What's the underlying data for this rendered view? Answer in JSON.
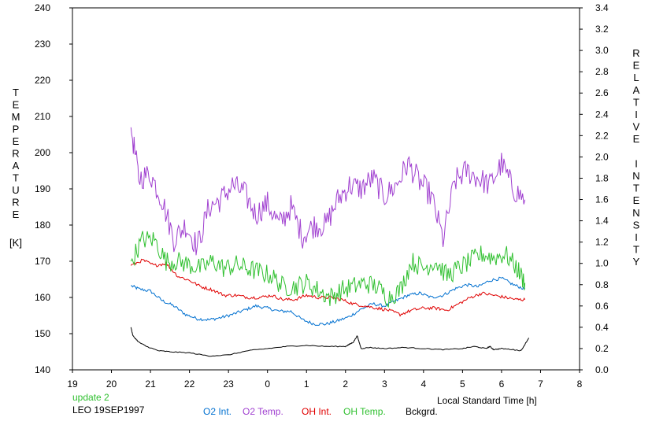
{
  "chart_data": {
    "type": "line",
    "status_text": "update 2",
    "station_label": "LEO 19SEP1997",
    "xlabel": "Local Standard Time [h]",
    "ylabel_left_letters": [
      "T",
      "E",
      "M",
      "P",
      "E",
      "R",
      "A",
      "T",
      "U",
      "R",
      "E"
    ],
    "ylabel_left_unit": "[K]",
    "ylabel_right_letters": [
      "R",
      "E",
      "L",
      "A",
      "T",
      "I",
      "V",
      "E",
      "",
      "I",
      "N",
      "T",
      "E",
      "N",
      "S",
      "I",
      "T",
      "Y"
    ],
    "x_ticks": [
      {
        "v": 19,
        "label": "19"
      },
      {
        "v": 20,
        "label": "20"
      },
      {
        "v": 21,
        "label": "21"
      },
      {
        "v": 22,
        "label": "22"
      },
      {
        "v": 23,
        "label": "23"
      },
      {
        "v": 24,
        "label": "0"
      },
      {
        "v": 25,
        "label": "1"
      },
      {
        "v": 26,
        "label": "2"
      },
      {
        "v": 27,
        "label": "3"
      },
      {
        "v": 28,
        "label": "4"
      },
      {
        "v": 29,
        "label": "5"
      },
      {
        "v": 30,
        "label": "6"
      },
      {
        "v": 31,
        "label": "7"
      },
      {
        "v": 32,
        "label": "8"
      }
    ],
    "xlim": [
      19,
      32
    ],
    "ylim_left": [
      140,
      240
    ],
    "yticks_left": [
      "140",
      "150",
      "160",
      "170",
      "180",
      "190",
      "200",
      "210",
      "220",
      "230",
      "240"
    ],
    "ylim_right": [
      0,
      3.4
    ],
    "yticks_right": [
      "0.0",
      "0.2",
      "0.4",
      "0.6",
      "0.8",
      "1.0",
      "1.2",
      "1.4",
      "1.6",
      "1.8",
      "2.0",
      "2.2",
      "2.4",
      "2.6",
      "2.8",
      "3.0",
      "3.2",
      "3.4"
    ],
    "grid": false,
    "legend_placement": "bottom",
    "series": [
      {
        "name": "O2 Int.",
        "axis": "right",
        "color": "#0070d0",
        "noise": 0.015,
        "x": [
          20.5,
          20.7,
          21.0,
          21.3,
          21.6,
          21.9,
          22.2,
          22.5,
          22.8,
          23.1,
          23.4,
          23.7,
          24.0,
          24.3,
          24.6,
          24.9,
          25.2,
          25.5,
          25.8,
          26.1,
          26.4,
          26.7,
          27.0,
          27.3,
          27.6,
          27.9,
          28.2,
          28.5,
          28.8,
          29.1,
          29.4,
          29.7,
          30.0,
          30.3,
          30.6
        ],
        "y": [
          0.79,
          0.76,
          0.74,
          0.65,
          0.6,
          0.52,
          0.48,
          0.47,
          0.49,
          0.52,
          0.56,
          0.6,
          0.58,
          0.55,
          0.55,
          0.47,
          0.43,
          0.43,
          0.46,
          0.5,
          0.57,
          0.62,
          0.6,
          0.65,
          0.7,
          0.72,
          0.68,
          0.7,
          0.76,
          0.8,
          0.78,
          0.84,
          0.86,
          0.8,
          0.76
        ]
      },
      {
        "name": "O2 Temp.",
        "axis": "left",
        "color": "#a040d0",
        "noise": 3.5,
        "x": [
          20.5,
          20.7,
          21.0,
          21.3,
          21.6,
          21.9,
          22.2,
          22.5,
          22.8,
          23.1,
          23.4,
          23.7,
          24.0,
          24.3,
          24.6,
          24.9,
          25.2,
          25.5,
          25.8,
          26.1,
          26.4,
          26.7,
          27.0,
          27.3,
          27.6,
          27.9,
          28.2,
          28.5,
          28.8,
          29.1,
          29.4,
          29.7,
          30.0,
          30.3,
          30.6
        ],
        "y": [
          207,
          193,
          194,
          187,
          176,
          180,
          174,
          185,
          187,
          191,
          189,
          183,
          186,
          180,
          185,
          177,
          180,
          180,
          187,
          191,
          190,
          193,
          188,
          191,
          197,
          192,
          188,
          176,
          192,
          195,
          193,
          191,
          197,
          190,
          187
        ]
      },
      {
        "name": "OH Int.",
        "axis": "right",
        "color": "#e00000",
        "noise": 0.015,
        "x": [
          20.5,
          20.8,
          21.1,
          21.4,
          21.7,
          22.0,
          22.3,
          22.6,
          22.9,
          23.2,
          23.5,
          23.8,
          24.1,
          24.4,
          24.7,
          25.0,
          25.3,
          25.6,
          25.9,
          26.2,
          26.5,
          26.8,
          27.1,
          27.4,
          27.7,
          28.0,
          28.3,
          28.6,
          28.9,
          29.2,
          29.5,
          29.8,
          30.1,
          30.4,
          30.6
        ],
        "y": [
          0.98,
          1.03,
          0.98,
          1.0,
          0.88,
          0.84,
          0.78,
          0.75,
          0.7,
          0.7,
          0.68,
          0.68,
          0.7,
          0.66,
          0.66,
          0.7,
          0.68,
          0.68,
          0.66,
          0.62,
          0.6,
          0.58,
          0.56,
          0.52,
          0.56,
          0.58,
          0.58,
          0.56,
          0.62,
          0.68,
          0.72,
          0.7,
          0.68,
          0.66,
          0.66
        ]
      },
      {
        "name": "OH Temp.",
        "axis": "left",
        "color": "#30c030",
        "noise": 2.8,
        "x": [
          20.5,
          20.8,
          21.1,
          21.4,
          21.7,
          22.0,
          22.3,
          22.6,
          22.9,
          23.2,
          23.5,
          23.8,
          24.1,
          24.4,
          24.7,
          25.0,
          25.3,
          25.6,
          25.9,
          26.2,
          26.5,
          26.8,
          27.1,
          27.4,
          27.7,
          28.0,
          28.3,
          28.6,
          28.9,
          29.2,
          29.5,
          29.8,
          30.1,
          30.4,
          30.6
        ],
        "y": [
          170,
          176,
          176,
          170,
          170,
          169,
          168,
          170,
          168,
          169,
          168,
          167,
          166,
          163,
          163,
          164,
          162,
          160,
          162,
          163,
          164,
          163,
          160,
          162,
          170,
          168,
          170,
          166,
          168,
          170,
          172,
          171,
          172,
          168,
          164
        ]
      },
      {
        "name": "Bckgrd.",
        "axis": "right",
        "color": "#000000",
        "noise": 0.004,
        "x": [
          20.5,
          20.55,
          20.7,
          20.9,
          21.2,
          21.5,
          22.0,
          22.5,
          23.0,
          23.5,
          24.0,
          24.5,
          25.0,
          25.5,
          26.0,
          26.1,
          26.2,
          26.3,
          26.4,
          26.6,
          27.0,
          27.5,
          28.0,
          28.5,
          29.0,
          29.3,
          29.6,
          29.7,
          29.8,
          30.0,
          30.3,
          30.5,
          30.7
        ],
        "y": [
          0.4,
          0.32,
          0.26,
          0.22,
          0.18,
          0.17,
          0.16,
          0.13,
          0.14,
          0.18,
          0.2,
          0.22,
          0.23,
          0.22,
          0.22,
          0.24,
          0.26,
          0.32,
          0.2,
          0.21,
          0.2,
          0.21,
          0.2,
          0.19,
          0.2,
          0.22,
          0.2,
          0.22,
          0.19,
          0.2,
          0.19,
          0.18,
          0.3
        ]
      }
    ]
  }
}
